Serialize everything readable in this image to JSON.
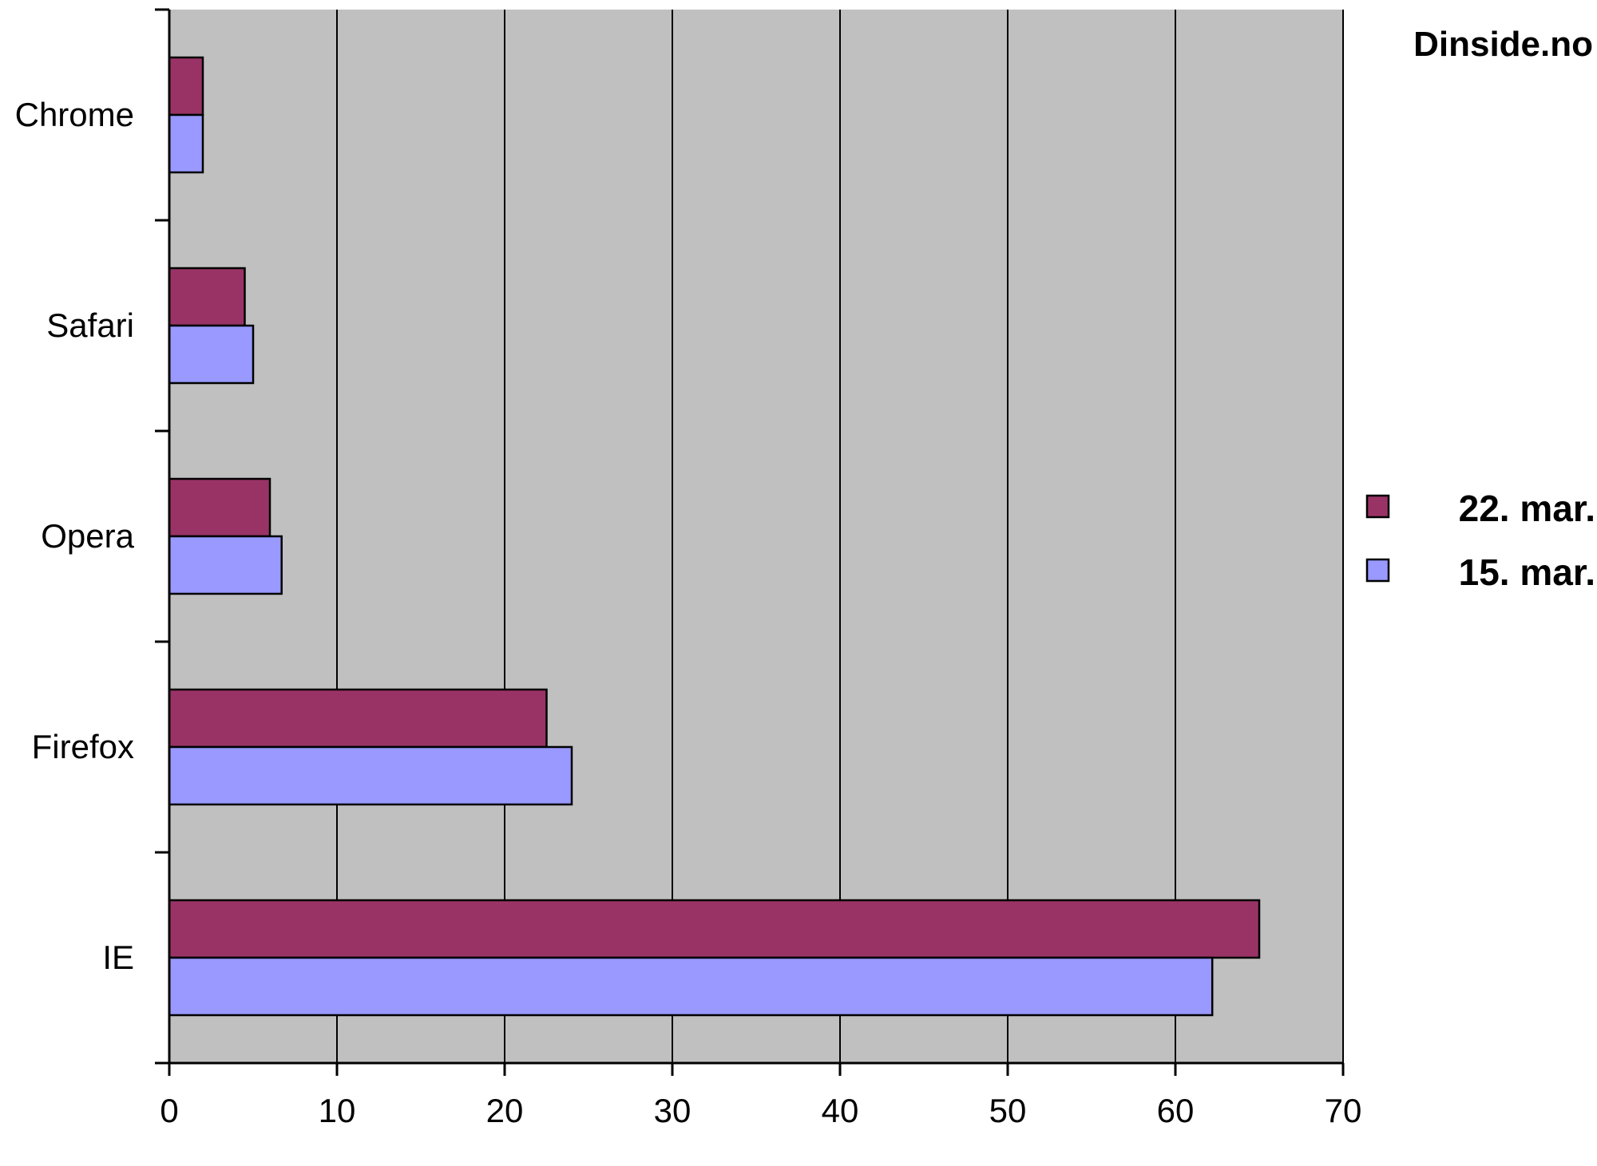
{
  "source_label": "Dinside.no",
  "chart_data": {
    "type": "bar",
    "orientation": "horizontal",
    "categories": [
      "Chrome",
      "Safari",
      "Opera",
      "Firefox",
      "IE"
    ],
    "series": [
      {
        "name": "22. mar.",
        "color": "#993366",
        "values": [
          2.0,
          4.5,
          6.0,
          22.5,
          65.0
        ]
      },
      {
        "name": "15. mar.",
        "color": "#9999ff",
        "values": [
          2.0,
          5.0,
          6.7,
          24.0,
          62.2
        ]
      }
    ],
    "xlim": [
      0,
      70
    ],
    "xticks": [
      0,
      10,
      20,
      30,
      40,
      50,
      60,
      70
    ],
    "grid": true,
    "plot_background": "#c0c0c0",
    "legend_position": "right"
  }
}
